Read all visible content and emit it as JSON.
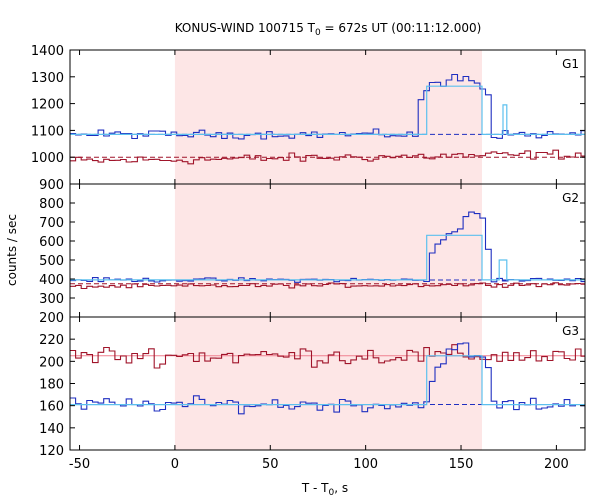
{
  "chart_data": {
    "type": "line",
    "title": "KONUS-WIND 100715 T",
    "title_sub": "0",
    "title_rest": " = 672s UT (00:11:12.000)",
    "xlabel": "T - T",
    "xlabel_sub": "0",
    "xlabel_rest": ", s",
    "ylabel": "counts / sec",
    "xlim": [
      -55,
      215
    ],
    "xticks": [
      -50,
      0,
      50,
      100,
      150,
      200
    ],
    "shaded_interval": [
      0,
      161
    ],
    "shaded_color": "#fde6e6",
    "colors": {
      "blue": "#1f2fc0",
      "red": "#a0142a",
      "light_blue": "#5cc0ee",
      "pink": "#f08090"
    },
    "bin_width": 2.944,
    "bin_start": -55,
    "panels": [
      {
        "label": "G1",
        "ylim": [
          900,
          1400
        ],
        "yticks": [
          900,
          1000,
          1100,
          1200,
          1300,
          1400
        ],
        "blue": {
          "base": 1085,
          "noise": 14,
          "bump": [
            {
              "from": 125,
              "to": 163,
              "add": 200
            }
          ],
          "spike": [
            {
              "x": 145,
              "v": 1310
            }
          ]
        },
        "red": {
          "base": 985,
          "slope": 0.1,
          "noise": 16
        },
        "blue_bg_level": 1085,
        "red_bg_level": 1000,
        "light_blue_steps": [
          [
            -55,
            1085
          ],
          [
            132,
            1085
          ],
          [
            132,
            1265
          ],
          [
            161,
            1265
          ],
          [
            161,
            1085
          ],
          [
            172,
            1085
          ],
          [
            172,
            1195
          ],
          [
            174,
            1195
          ],
          [
            174,
            1085
          ],
          [
            215,
            1085
          ]
        ]
      },
      {
        "label": "G2",
        "ylim": [
          200,
          900
        ],
        "yticks": [
          200,
          300,
          400,
          500,
          600,
          700,
          800
        ],
        "blue": {
          "base": 395,
          "noise": 10,
          "bump": [
            {
              "from": 132,
              "to": 163,
              "add": 230
            }
          ],
          "spike": [
            {
              "x": 155,
              "v": 760
            }
          ]
        },
        "red": {
          "base": 360,
          "slope": 0.05,
          "noise": 10
        },
        "blue_bg_level": 395,
        "red_bg_level": 375,
        "light_blue_steps": [
          [
            -55,
            395
          ],
          [
            132,
            395
          ],
          [
            132,
            630
          ],
          [
            161,
            630
          ],
          [
            161,
            395
          ],
          [
            170,
            395
          ],
          [
            170,
            500
          ],
          [
            174,
            500
          ],
          [
            174,
            395
          ],
          [
            215,
            395
          ]
        ]
      },
      {
        "label": "G3",
        "ylim": [
          120,
          240
        ],
        "yticks": [
          120,
          140,
          160,
          180,
          200,
          220
        ],
        "blue": {
          "base": 161,
          "noise": 6,
          "bump": [
            {
              "from": 132,
              "to": 163,
              "add": 44
            }
          ],
          "spike": []
        },
        "red": {
          "base": 205,
          "noise": 8
        },
        "blue_bg_level": 161,
        "red_bg_level": 205,
        "light_blue_steps": [
          [
            -55,
            161
          ],
          [
            132,
            161
          ],
          [
            132,
            205
          ],
          [
            161,
            205
          ],
          [
            161,
            161
          ],
          [
            215,
            161
          ]
        ]
      }
    ]
  }
}
